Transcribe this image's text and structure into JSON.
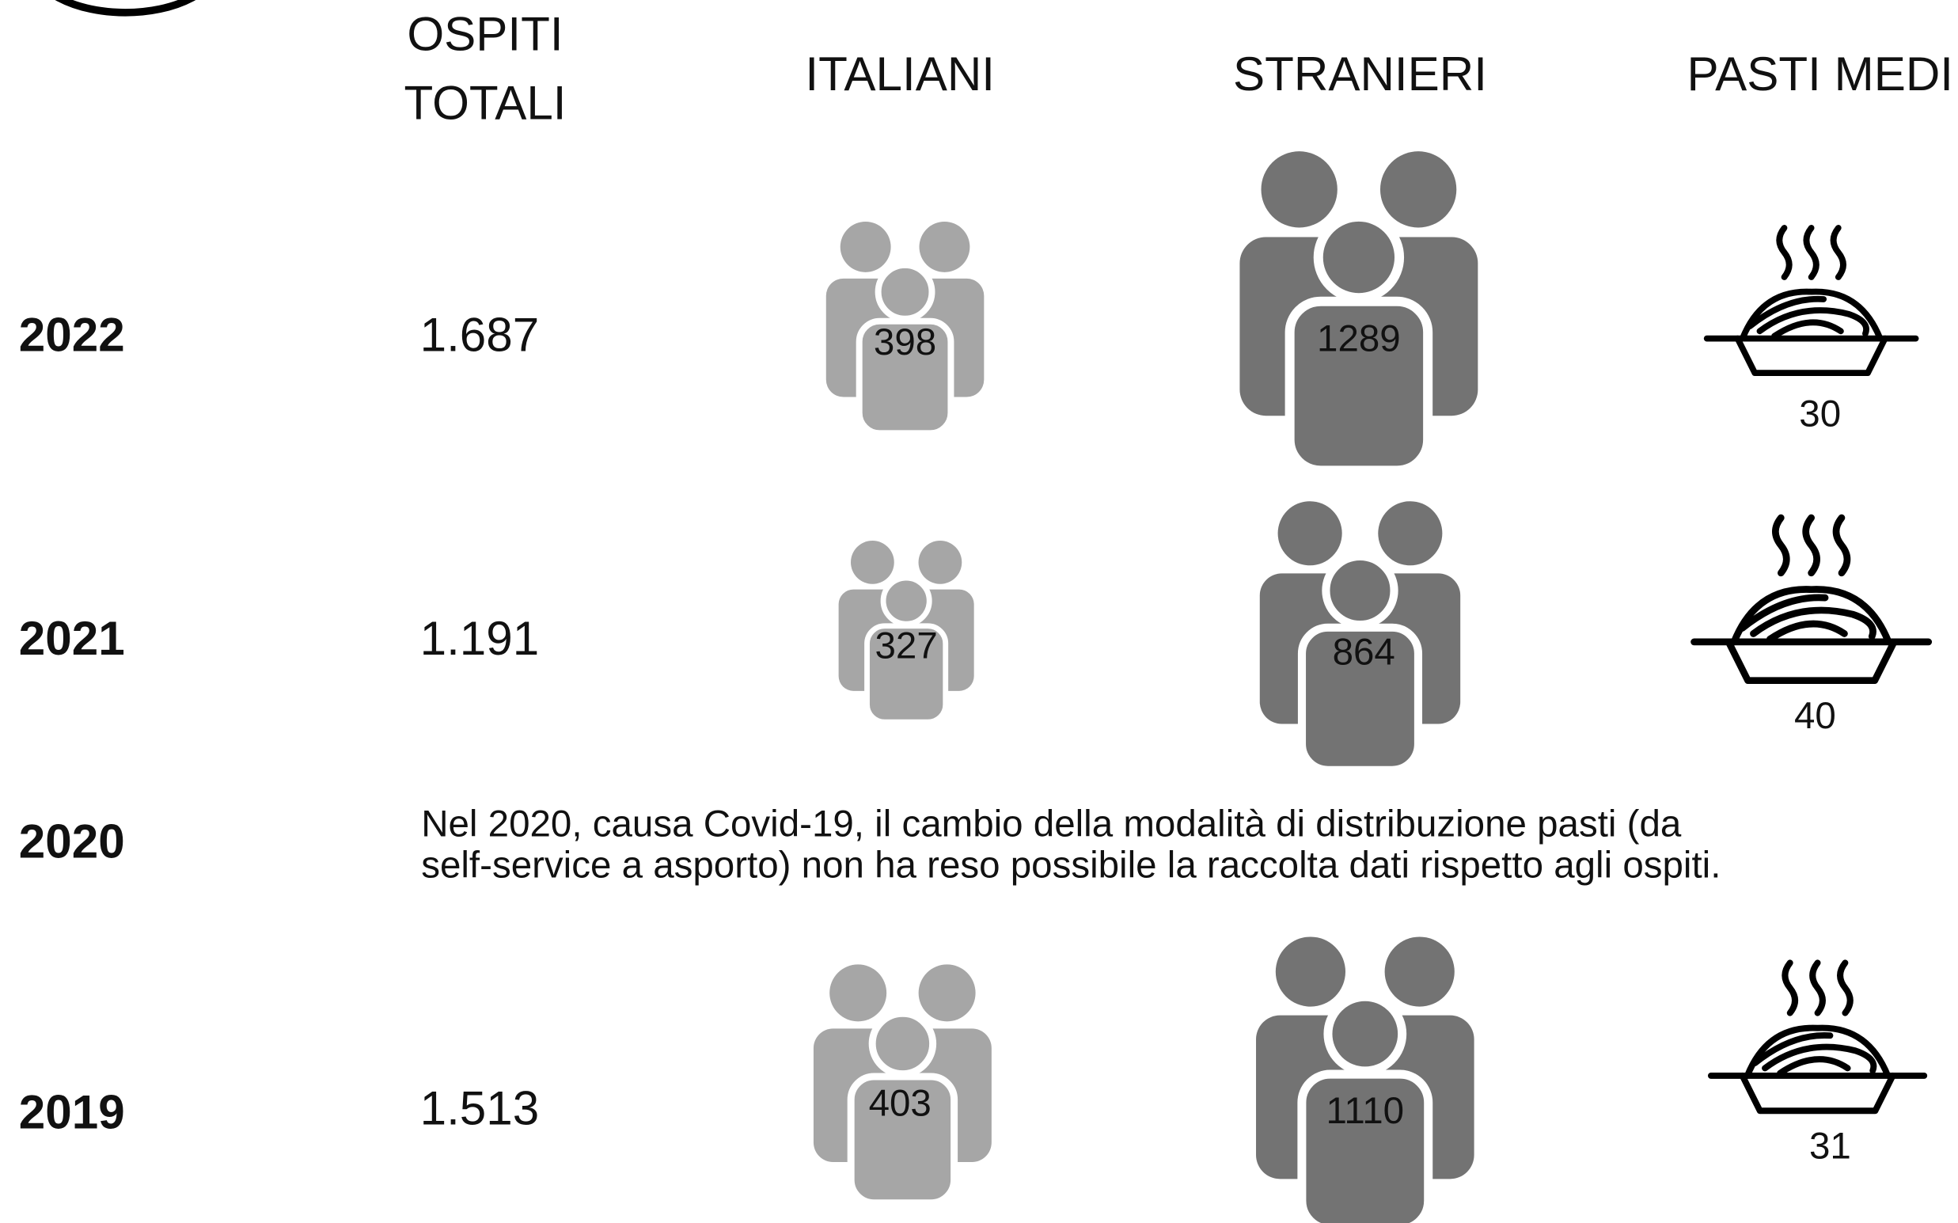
{
  "header": {
    "ospiti": [
      "OSPITI",
      "TOTALI"
    ],
    "italiani": "ITALIANI",
    "stranieri": "STRANIERI",
    "pasti": "PASTI MEDI"
  },
  "rows": [
    {
      "year": "2022",
      "totale": "1.687",
      "italiani": "398",
      "stranieri": "1289",
      "pasti": "30"
    },
    {
      "year": "2021",
      "totale": "1.191",
      "italiani": "327",
      "stranieri": "864",
      "pasti": "40"
    },
    {
      "year": "2020",
      "note": [
        "Nel 2020, causa Covid-19, il cambio della modalità di distribuzione pasti (da",
        "self-service a asporto) non ha reso possibile la raccolta dati rispetto agli ospiti."
      ]
    },
    {
      "year": "2019",
      "totale": "1.513",
      "italiani": "403",
      "stranieri": "1110",
      "pasti": "31"
    }
  ]
}
